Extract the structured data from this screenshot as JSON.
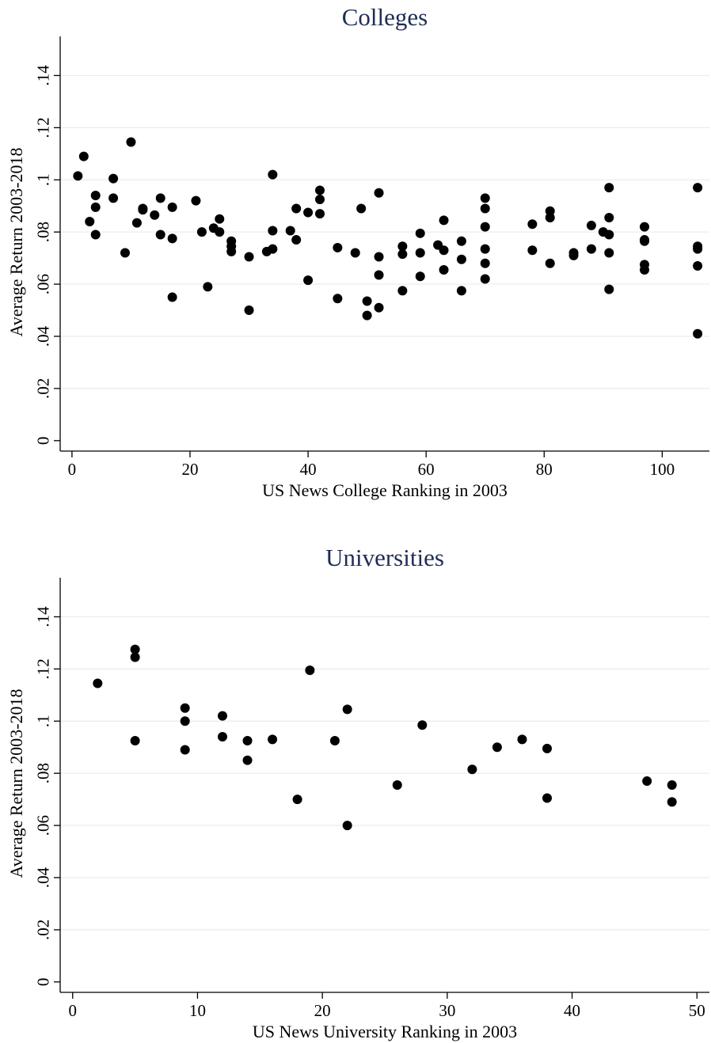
{
  "chart_data": [
    {
      "type": "scatter",
      "title": "Colleges",
      "xlabel": "US News College Ranking in 2003",
      "ylabel": "Average Return 2003-2018",
      "xlim": [
        -2,
        108
      ],
      "ylim": [
        -0.004,
        0.155
      ],
      "xticks": [
        0,
        20,
        40,
        60,
        80,
        100
      ],
      "yticks": [
        0,
        0.02,
        0.04,
        0.06,
        0.08,
        0.1,
        0.12,
        0.14
      ],
      "ytick_labels": [
        "0",
        ".02",
        ".04",
        ".06",
        ".08",
        ".1",
        ".12",
        ".14"
      ],
      "grid": true,
      "points": [
        [
          1,
          0.1015
        ],
        [
          2,
          0.109
        ],
        [
          3,
          0.084
        ],
        [
          4,
          0.094
        ],
        [
          4,
          0.0895
        ],
        [
          4,
          0.079
        ],
        [
          7,
          0.1005
        ],
        [
          7,
          0.093
        ],
        [
          9,
          0.072
        ],
        [
          10,
          0.1145
        ],
        [
          11,
          0.0835
        ],
        [
          12,
          0.0885
        ],
        [
          12,
          0.089
        ],
        [
          14,
          0.0865
        ],
        [
          15,
          0.093
        ],
        [
          15,
          0.079
        ],
        [
          17,
          0.0895
        ],
        [
          17,
          0.0775
        ],
        [
          17,
          0.055
        ],
        [
          21,
          0.092
        ],
        [
          22,
          0.08
        ],
        [
          23,
          0.059
        ],
        [
          24,
          0.0815
        ],
        [
          25,
          0.085
        ],
        [
          25,
          0.08
        ],
        [
          27,
          0.0765
        ],
        [
          27,
          0.0745
        ],
        [
          27,
          0.0725
        ],
        [
          30,
          0.0705
        ],
        [
          30,
          0.05
        ],
        [
          33,
          0.0725
        ],
        [
          34,
          0.102
        ],
        [
          34,
          0.0805
        ],
        [
          34,
          0.0735
        ],
        [
          37,
          0.0805
        ],
        [
          38,
          0.089
        ],
        [
          38,
          0.077
        ],
        [
          40,
          0.0875
        ],
        [
          40,
          0.0615
        ],
        [
          42,
          0.096
        ],
        [
          42,
          0.0925
        ],
        [
          42,
          0.087
        ],
        [
          45,
          0.074
        ],
        [
          45,
          0.0545
        ],
        [
          48,
          0.072
        ],
        [
          49,
          0.089
        ],
        [
          50,
          0.0535
        ],
        [
          50,
          0.048
        ],
        [
          52,
          0.095
        ],
        [
          52,
          0.0705
        ],
        [
          52,
          0.0635
        ],
        [
          52,
          0.051
        ],
        [
          56,
          0.0745
        ],
        [
          56,
          0.0715
        ],
        [
          56,
          0.0575
        ],
        [
          59,
          0.0795
        ],
        [
          59,
          0.072
        ],
        [
          59,
          0.063
        ],
        [
          62,
          0.075
        ],
        [
          63,
          0.0845
        ],
        [
          63,
          0.073
        ],
        [
          63,
          0.0655
        ],
        [
          66,
          0.0765
        ],
        [
          66,
          0.0695
        ],
        [
          66,
          0.0575
        ],
        [
          70,
          0.093
        ],
        [
          70,
          0.089
        ],
        [
          70,
          0.082
        ],
        [
          70,
          0.0735
        ],
        [
          70,
          0.068
        ],
        [
          70,
          0.062
        ],
        [
          78,
          0.083
        ],
        [
          78,
          0.073
        ],
        [
          81,
          0.088
        ],
        [
          81,
          0.0855
        ],
        [
          81,
          0.068
        ],
        [
          85,
          0.072
        ],
        [
          85,
          0.071
        ],
        [
          88,
          0.0825
        ],
        [
          88,
          0.0735
        ],
        [
          90,
          0.08
        ],
        [
          91,
          0.097
        ],
        [
          91,
          0.0855
        ],
        [
          91,
          0.079
        ],
        [
          91,
          0.072
        ],
        [
          91,
          0.058
        ],
        [
          97,
          0.082
        ],
        [
          97,
          0.077
        ],
        [
          97,
          0.0765
        ],
        [
          97,
          0.0675
        ],
        [
          97,
          0.0655
        ],
        [
          106,
          0.097
        ],
        [
          106,
          0.0745
        ],
        [
          106,
          0.0735
        ],
        [
          106,
          0.067
        ],
        [
          106,
          0.041
        ]
      ]
    },
    {
      "type": "scatter",
      "title": "Universities",
      "xlabel": "US News University Ranking in 2003",
      "ylabel": "Average Return 2003-2018",
      "xlim": [
        -1,
        51
      ],
      "ylim": [
        -0.004,
        0.155
      ],
      "xticks": [
        0,
        10,
        20,
        30,
        40,
        50
      ],
      "yticks": [
        0,
        0.02,
        0.04,
        0.06,
        0.08,
        0.1,
        0.12,
        0.14
      ],
      "ytick_labels": [
        "0",
        ".02",
        ".04",
        ".06",
        ".08",
        ".1",
        ".12",
        ".14"
      ],
      "grid": true,
      "points": [
        [
          2,
          0.1145
        ],
        [
          5,
          0.1275
        ],
        [
          5,
          0.1245
        ],
        [
          5,
          0.0925
        ],
        [
          9,
          0.105
        ],
        [
          9,
          0.1
        ],
        [
          9,
          0.089
        ],
        [
          12,
          0.102
        ],
        [
          12,
          0.094
        ],
        [
          14,
          0.0925
        ],
        [
          14,
          0.085
        ],
        [
          16,
          0.093
        ],
        [
          18,
          0.07
        ],
        [
          19,
          0.1195
        ],
        [
          21,
          0.0925
        ],
        [
          22,
          0.1045
        ],
        [
          22,
          0.06
        ],
        [
          26,
          0.0755
        ],
        [
          28,
          0.0985
        ],
        [
          32,
          0.0815
        ],
        [
          34,
          0.09
        ],
        [
          36,
          0.093
        ],
        [
          38,
          0.0895
        ],
        [
          38,
          0.0705
        ],
        [
          46,
          0.077
        ],
        [
          48,
          0.0755
        ],
        [
          48,
          0.069
        ]
      ]
    }
  ]
}
